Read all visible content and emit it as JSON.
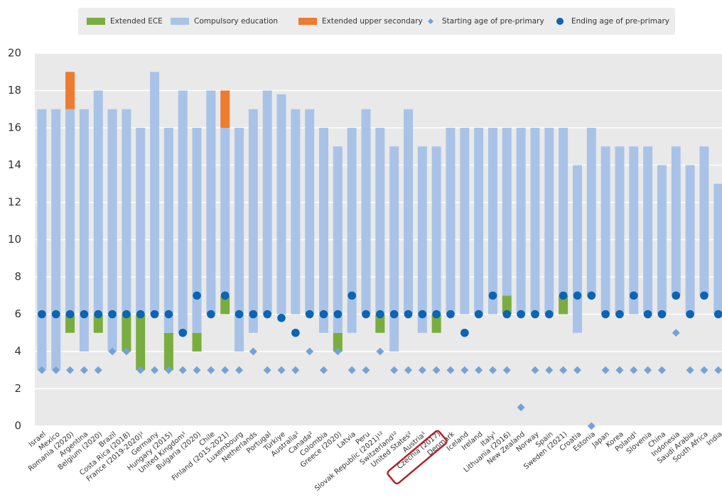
{
  "chart_data": {
    "type": "range-bar",
    "categories": [
      "Israel",
      "Mexico",
      "Romania (2020)",
      "Argentina",
      "Belgium (2020)",
      "Brazil",
      "Costa Rica (2018)",
      "France (2019-2020)¹",
      "Germany",
      "Hungary (2015)",
      "United Kingdom¹",
      "Bulgaria (2020)",
      "Chile",
      "Finland (2015-2021)",
      "Luxembourg",
      "Netherlands",
      "Portugal",
      "Türkiye",
      "Australia²",
      "Canada²",
      "Colombia",
      "Greece (2020)",
      "Latvia",
      "Peru",
      "Slovak Republic (2021)¹²",
      "Switzerland¹²",
      "United States²",
      "Austria¹",
      "Czechia (2017)",
      "Denmark",
      "Iceland",
      "Ireland",
      "Italy¹",
      "Lithuania (2016)",
      "New Zealand",
      "Norway",
      "Spain",
      "Sweden (2021)",
      "Croatia",
      "Estonia",
      "Japan",
      "Korea",
      "Poland¹",
      "Slovenia",
      "China",
      "Indonesia",
      "Saudi Arabia",
      "South Africa",
      "India"
    ],
    "series": [
      {
        "name": "Extended ECE",
        "color": "#7aad3f",
        "kind": "range",
        "values": [
          null,
          null,
          [
            5,
            6
          ],
          null,
          [
            5,
            6
          ],
          null,
          [
            4,
            6
          ],
          [
            3,
            6
          ],
          null,
          [
            3,
            5
          ],
          null,
          [
            4,
            5
          ],
          null,
          [
            6,
            7
          ],
          null,
          null,
          null,
          null,
          null,
          null,
          null,
          [
            4,
            5
          ],
          null,
          null,
          [
            5,
            6
          ],
          null,
          null,
          null,
          [
            5,
            6
          ],
          null,
          null,
          null,
          null,
          [
            6,
            7
          ],
          null,
          null,
          null,
          [
            6,
            7
          ],
          null,
          null,
          null,
          null,
          null,
          null,
          null,
          null,
          null,
          null,
          null
        ]
      },
      {
        "name": "Compulsory education",
        "color": "#a9c3e8",
        "kind": "range",
        "values": [
          [
            3,
            17
          ],
          [
            3,
            17
          ],
          [
            6,
            17
          ],
          [
            4,
            17
          ],
          [
            6,
            18
          ],
          [
            4,
            17
          ],
          [
            6,
            17
          ],
          [
            6,
            16
          ],
          [
            6,
            19
          ],
          [
            5,
            16
          ],
          [
            5,
            18
          ],
          [
            5,
            16
          ],
          [
            6,
            18
          ],
          [
            7,
            16
          ],
          [
            4,
            16
          ],
          [
            5,
            17
          ],
          [
            6,
            18
          ],
          [
            6,
            17.8
          ],
          [
            6,
            17
          ],
          [
            6,
            17
          ],
          [
            5,
            16
          ],
          [
            5,
            15
          ],
          [
            5,
            16
          ],
          [
            6,
            17
          ],
          [
            6,
            16
          ],
          [
            4,
            15
          ],
          [
            6,
            17
          ],
          [
            5,
            15
          ],
          [
            6,
            15
          ],
          [
            6,
            16
          ],
          [
            6,
            16
          ],
          [
            6,
            16
          ],
          [
            6,
            16
          ],
          [
            7,
            16
          ],
          [
            6,
            16
          ],
          [
            6,
            16
          ],
          [
            6,
            16
          ],
          [
            7,
            16
          ],
          [
            5,
            14
          ],
          [
            7,
            16
          ],
          [
            6,
            15
          ],
          [
            6,
            15
          ],
          [
            6,
            15
          ],
          [
            6,
            15
          ],
          [
            6,
            14
          ],
          [
            7,
            15
          ],
          [
            6,
            14
          ],
          [
            7,
            15
          ],
          [
            6,
            13
          ]
        ]
      },
      {
        "name": "Extended upper secondary",
        "color": "#ee7b30",
        "kind": "range",
        "values": [
          null,
          null,
          [
            17,
            19
          ],
          null,
          null,
          null,
          null,
          null,
          null,
          null,
          null,
          null,
          null,
          [
            16,
            18
          ],
          null,
          null,
          null,
          null,
          null,
          null,
          null,
          null,
          null,
          null,
          null,
          null,
          null,
          null,
          null,
          null,
          null,
          null,
          null,
          null,
          null,
          null,
          null,
          null,
          null,
          null,
          null,
          null,
          null,
          null,
          null,
          null,
          null,
          null,
          null
        ]
      },
      {
        "name": "Starting age of pre-primary",
        "color": "#73a2da",
        "kind": "point",
        "marker": "diamond",
        "values": [
          3,
          3,
          3,
          3,
          3,
          4,
          4,
          3,
          3,
          3,
          3,
          3,
          3,
          3,
          3,
          4,
          3,
          3,
          3,
          4,
          3,
          4,
          3,
          3,
          4,
          3,
          3,
          3,
          3,
          3,
          3,
          3,
          3,
          3,
          1,
          3,
          3,
          3,
          3,
          0,
          3,
          3,
          3,
          3,
          3,
          5,
          3,
          3,
          3
        ]
      },
      {
        "name": "Ending age of pre-primary",
        "color": "#0b64b4",
        "kind": "point",
        "marker": "circle",
        "values": [
          6,
          6,
          6,
          6,
          6,
          6,
          6,
          6,
          6,
          6,
          5,
          7,
          6,
          7,
          6,
          6,
          6,
          5.8,
          5,
          6,
          6,
          6,
          7,
          6,
          6,
          6,
          6,
          6,
          6,
          6,
          5,
          6,
          7,
          6,
          6,
          6,
          6,
          7,
          7,
          7,
          6,
          6,
          7,
          6,
          6,
          7,
          6,
          7,
          6
        ]
      }
    ],
    "ylim": [
      0,
      20
    ],
    "yticks": [
      0,
      2,
      4,
      6,
      8,
      10,
      12,
      14,
      16,
      18,
      20
    ],
    "grid": true
  }
}
